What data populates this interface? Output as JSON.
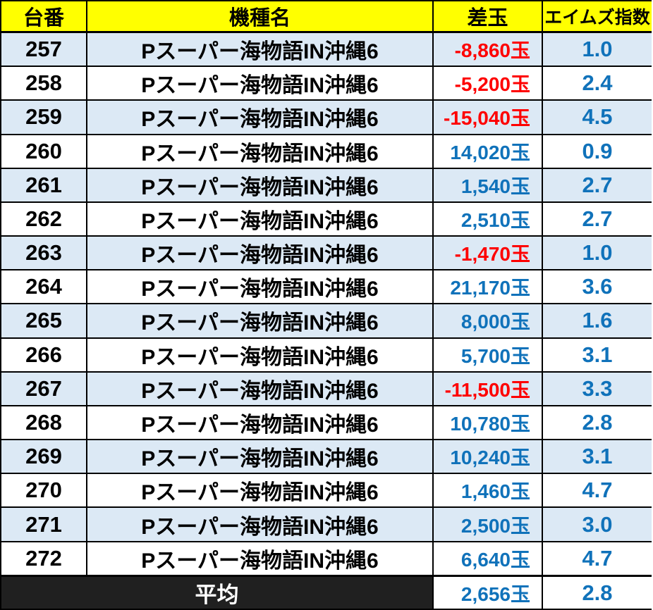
{
  "chart_data": {
    "type": "table",
    "title": "",
    "columns": [
      "台番",
      "機種名",
      "差玉",
      "エイムズ指数"
    ],
    "rows": [
      [
        "257",
        "Pスーパー海物語IN沖縄6",
        "-8,860玉",
        "1.0"
      ],
      [
        "258",
        "Pスーパー海物語IN沖縄6",
        "-5,200玉",
        "2.4"
      ],
      [
        "259",
        "Pスーパー海物語IN沖縄6",
        "-15,040玉",
        "4.5"
      ],
      [
        "260",
        "Pスーパー海物語IN沖縄6",
        "14,020玉",
        "0.9"
      ],
      [
        "261",
        "Pスーパー海物語IN沖縄6",
        "1,540玉",
        "2.7"
      ],
      [
        "262",
        "Pスーパー海物語IN沖縄6",
        "2,510玉",
        "2.7"
      ],
      [
        "263",
        "Pスーパー海物語IN沖縄6",
        "-1,470玉",
        "1.0"
      ],
      [
        "264",
        "Pスーパー海物語IN沖縄6",
        "21,170玉",
        "3.6"
      ],
      [
        "265",
        "Pスーパー海物語IN沖縄6",
        "8,000玉",
        "1.6"
      ],
      [
        "266",
        "Pスーパー海物語IN沖縄6",
        "5,700玉",
        "3.1"
      ],
      [
        "267",
        "Pスーパー海物語IN沖縄6",
        "-11,500玉",
        "3.3"
      ],
      [
        "268",
        "Pスーパー海物語IN沖縄6",
        "10,780玉",
        "2.8"
      ],
      [
        "269",
        "Pスーパー海物語IN沖縄6",
        "10,240玉",
        "3.1"
      ],
      [
        "270",
        "Pスーパー海物語IN沖縄6",
        "1,460玉",
        "4.7"
      ],
      [
        "271",
        "Pスーパー海物語IN沖縄6",
        "2,500玉",
        "3.0"
      ],
      [
        "272",
        "Pスーパー海物語IN沖縄6",
        "6,640玉",
        "4.7"
      ]
    ],
    "footer": [
      "平均",
      "2,656玉",
      "2.8"
    ],
    "layout_hints": {
      "stripe_pattern": "odd-rows-light-blue",
      "sadama_align": "right",
      "grid": "on"
    }
  },
  "colors": {
    "header_bg": "#FFFF00",
    "header_text": "#000000",
    "stripe_bg": "#DCE9F5",
    "row_bg": "#FFFFFF",
    "positive_text": "#1072BA",
    "negative_text": "#FE0000",
    "average_bg": "#202020",
    "average_text": "#FFFFFF",
    "border": "#000000"
  }
}
